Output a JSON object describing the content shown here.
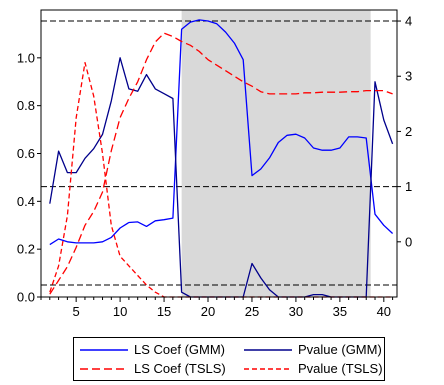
{
  "chart_data": {
    "type": "line",
    "x": [
      2,
      3,
      4,
      5,
      6,
      7,
      8,
      9,
      10,
      11,
      12,
      13,
      14,
      15,
      16,
      17,
      18,
      19,
      20,
      21,
      22,
      23,
      24,
      25,
      26,
      27,
      28,
      29,
      30,
      31,
      32,
      33,
      34,
      35,
      36,
      37,
      38,
      39,
      40,
      41
    ],
    "xlim": [
      1,
      41.5
    ],
    "x_ticks": [
      5,
      10,
      15,
      20,
      25,
      30,
      35,
      40
    ],
    "left_axis": {
      "ylim": [
        0,
        1.2
      ],
      "ticks": [
        "0.0",
        "0.2",
        "0.4",
        "0.6",
        "0.8",
        "1.0"
      ]
    },
    "right_axis": {
      "ylim": [
        -1,
        4.2
      ],
      "ticks": [
        "0",
        "1",
        "2",
        "3",
        "4"
      ]
    },
    "reference_lines": {
      "right_axis": [
        1,
        4
      ],
      "left_axis": [
        0.05
      ]
    },
    "shaded_region": [
      17,
      38.5
    ],
    "grid": false,
    "legend_position": "bottom",
    "series": [
      {
        "name": "LS Coef (GMM)",
        "axis": "right",
        "color": "#0000ff",
        "dash": "solid",
        "values": [
          -0.05,
          0.05,
          0.0,
          -0.02,
          -0.02,
          -0.02,
          0.0,
          0.08,
          0.25,
          0.35,
          0.36,
          0.28,
          0.38,
          0.4,
          0.43,
          3.85,
          3.98,
          4.02,
          4.0,
          3.95,
          3.8,
          3.6,
          3.3,
          1.2,
          1.32,
          1.52,
          1.8,
          1.93,
          1.95,
          1.88,
          1.7,
          1.66,
          1.66,
          1.7,
          1.9,
          1.9,
          1.88,
          0.5,
          0.3,
          0.15
        ]
      },
      {
        "name": "Pvalue (GMM)",
        "axis": "left",
        "color": "#00008b",
        "dash": "solid",
        "values": [
          0.39,
          0.61,
          0.52,
          0.52,
          0.58,
          0.62,
          0.68,
          0.82,
          1.0,
          0.87,
          0.86,
          0.93,
          0.87,
          0.85,
          0.83,
          0.02,
          0.0,
          0.0,
          0.0,
          0.0,
          0.0,
          0.0,
          0.0,
          0.14,
          0.08,
          0.03,
          0.0,
          0.0,
          0.0,
          0.0,
          0.01,
          0.01,
          0.0,
          0.0,
          0.0,
          0.0,
          0.0,
          0.9,
          0.74,
          0.64
        ]
      },
      {
        "name": "LS Coef (TSLS)",
        "axis": "right",
        "color": "#ff0000",
        "dash": "long",
        "values": [
          -0.95,
          -0.7,
          -0.45,
          -0.1,
          0.3,
          0.55,
          0.9,
          1.65,
          2.25,
          2.6,
          2.9,
          3.3,
          3.62,
          3.78,
          3.72,
          3.63,
          3.56,
          3.45,
          3.3,
          3.2,
          3.1,
          3.0,
          2.9,
          2.82,
          2.72,
          2.68,
          2.68,
          2.68,
          2.68,
          2.7,
          2.7,
          2.71,
          2.71,
          2.71,
          2.72,
          2.72,
          2.74,
          2.74,
          2.74,
          2.68
        ]
      },
      {
        "name": "Pvalue (TSLS)",
        "axis": "left",
        "color": "#ff0000",
        "dash": "short",
        "values": [
          0.02,
          0.13,
          0.34,
          0.75,
          0.98,
          0.84,
          0.6,
          0.3,
          0.17,
          0.13,
          0.09,
          0.05,
          0.02,
          0.0,
          0.0,
          0.0,
          0.0,
          0.0,
          0.0,
          0.0,
          0.0,
          0.0,
          0.0,
          0.0,
          0.0,
          0.0,
          0.0,
          0.0,
          0.0,
          0.0,
          0.0,
          0.0,
          0.0,
          0.0,
          0.0,
          0.0,
          0.0,
          0.0,
          0.0,
          0.0
        ]
      }
    ]
  }
}
